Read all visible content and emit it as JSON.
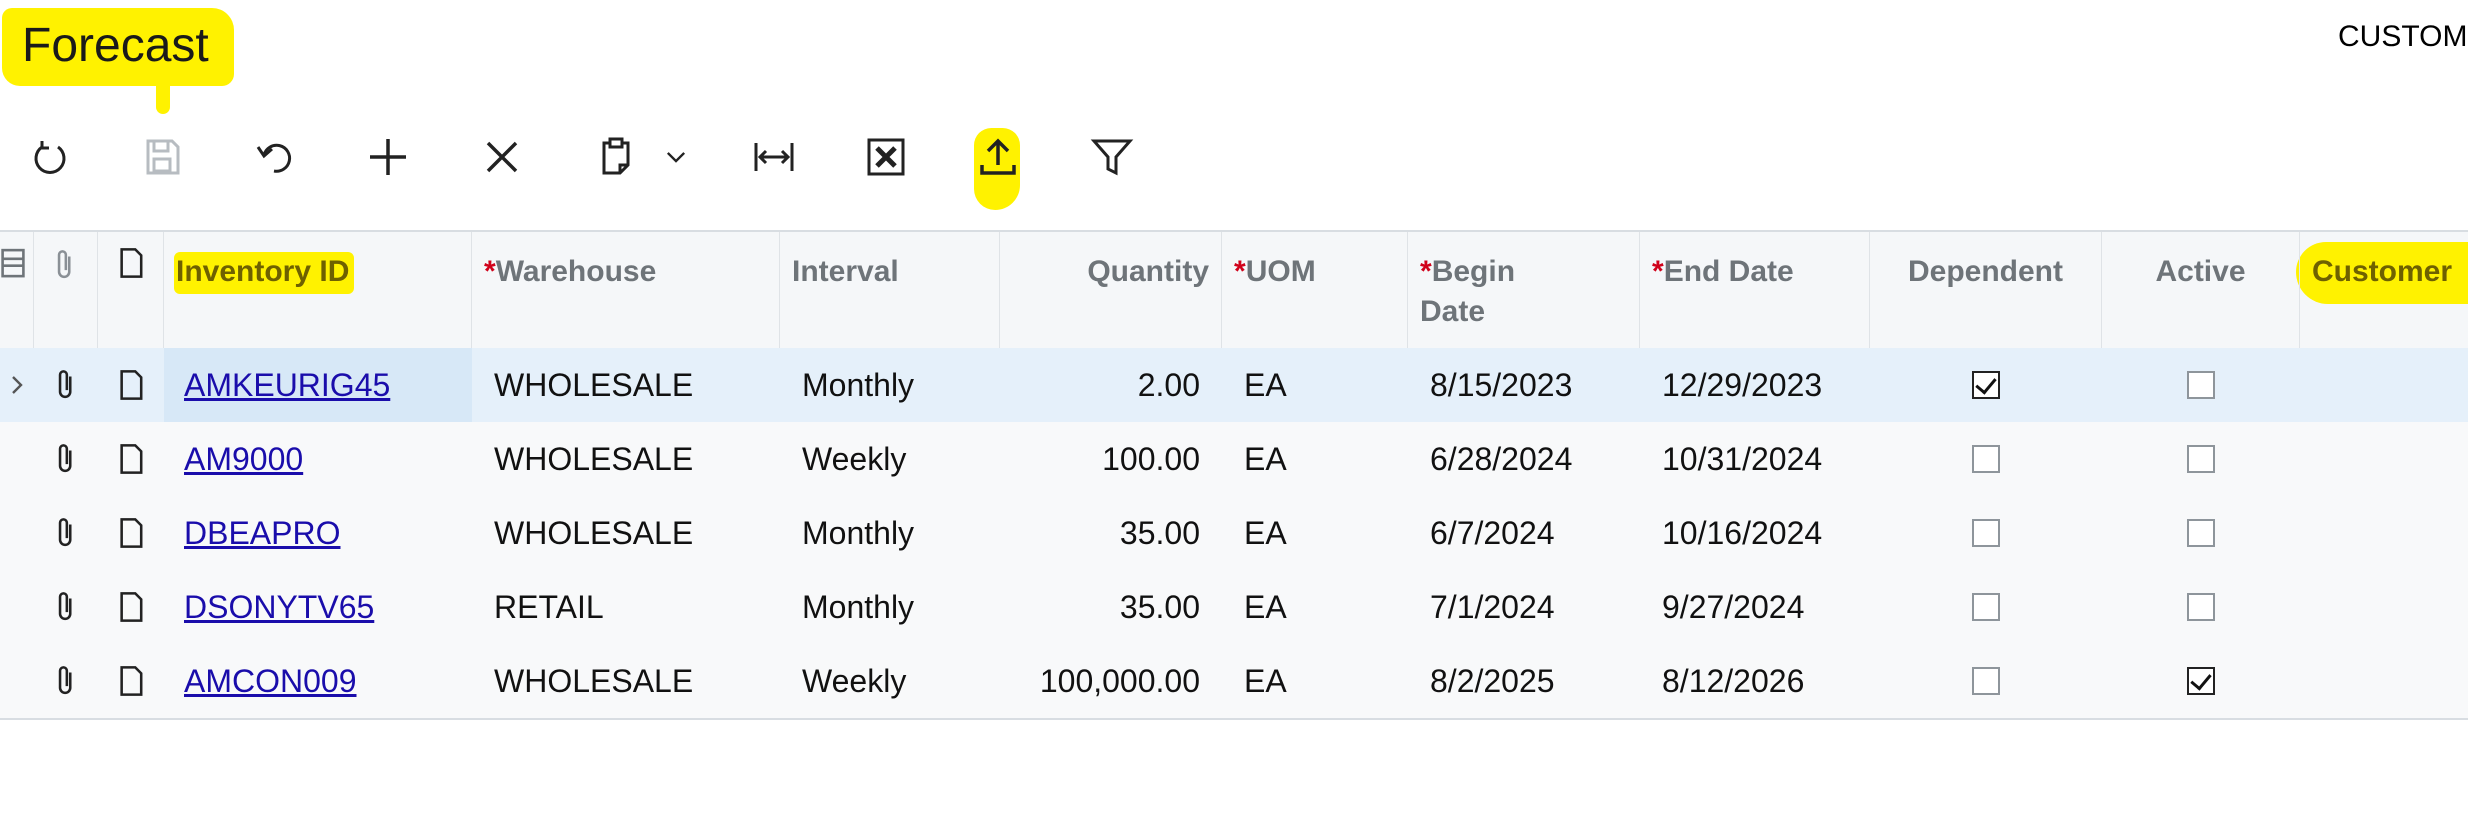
{
  "header": {
    "title": "Forecast",
    "right_text": "CUSTOM"
  },
  "toolbar": {
    "buttons": [
      {
        "icon": "refresh-icon"
      },
      {
        "icon": "save-icon"
      },
      {
        "icon": "undo-icon"
      },
      {
        "icon": "add-icon"
      },
      {
        "icon": "delete-icon"
      },
      {
        "icon": "clipboard-icon"
      },
      {
        "icon": "fit-columns-icon"
      },
      {
        "icon": "excel-export-icon"
      },
      {
        "icon": "upload-icon"
      },
      {
        "icon": "filter-icon"
      }
    ],
    "highlight_color": "#fff200"
  },
  "grid": {
    "columns": [
      {
        "label": "",
        "required": false
      },
      {
        "label": "",
        "required": false
      },
      {
        "label": "",
        "required": false
      },
      {
        "label": "Inventory ID",
        "required": false
      },
      {
        "label": "Warehouse",
        "required": true
      },
      {
        "label": "Interval",
        "required": false
      },
      {
        "label": "Quantity",
        "required": false
      },
      {
        "label": "UOM",
        "required": true
      },
      {
        "label": "Begin Date",
        "required": true
      },
      {
        "label": "End Date",
        "required": true
      },
      {
        "label": "Dependent",
        "required": false
      },
      {
        "label": "Active",
        "required": false
      },
      {
        "label": "Customer",
        "required": false
      }
    ],
    "header_labels": {
      "inventory_id": "Inventory ID",
      "warehouse": "Warehouse",
      "interval": "Interval",
      "quantity": "Quantity",
      "uom": "UOM",
      "begin_date": "Begin Date",
      "end_date": "End Date",
      "dependent": "Dependent",
      "active": "Active",
      "customer": "Customer",
      "required_mark": "*"
    },
    "rows": [
      {
        "inventory_id": "AMKEURIG45",
        "warehouse": "WHOLESALE",
        "interval": "Monthly",
        "quantity": "2.00",
        "uom": "EA",
        "begin_date": "8/15/2023",
        "end_date": "12/29/2023",
        "dependent": true,
        "active": false,
        "selected": true
      },
      {
        "inventory_id": "AM9000",
        "warehouse": "WHOLESALE",
        "interval": "Weekly",
        "quantity": "100.00",
        "uom": "EA",
        "begin_date": "6/28/2024",
        "end_date": "10/31/2024",
        "dependent": false,
        "active": false,
        "selected": false
      },
      {
        "inventory_id": "DBEAPRO",
        "warehouse": "WHOLESALE",
        "interval": "Monthly",
        "quantity": "35.00",
        "uom": "EA",
        "begin_date": "6/7/2024",
        "end_date": "10/16/2024",
        "dependent": false,
        "active": false,
        "selected": false
      },
      {
        "inventory_id": "DSONYTV65",
        "warehouse": "RETAIL",
        "interval": "Monthly",
        "quantity": "35.00",
        "uom": "EA",
        "begin_date": "7/1/2024",
        "end_date": "9/27/2024",
        "dependent": false,
        "active": false,
        "selected": false
      },
      {
        "inventory_id": "AMCON009",
        "warehouse": "WHOLESALE",
        "interval": "Weekly",
        "quantity": "100,000.00",
        "uom": "EA",
        "begin_date": "8/2/2025",
        "end_date": "8/12/2026",
        "dependent": false,
        "active": true,
        "selected": false
      }
    ]
  }
}
